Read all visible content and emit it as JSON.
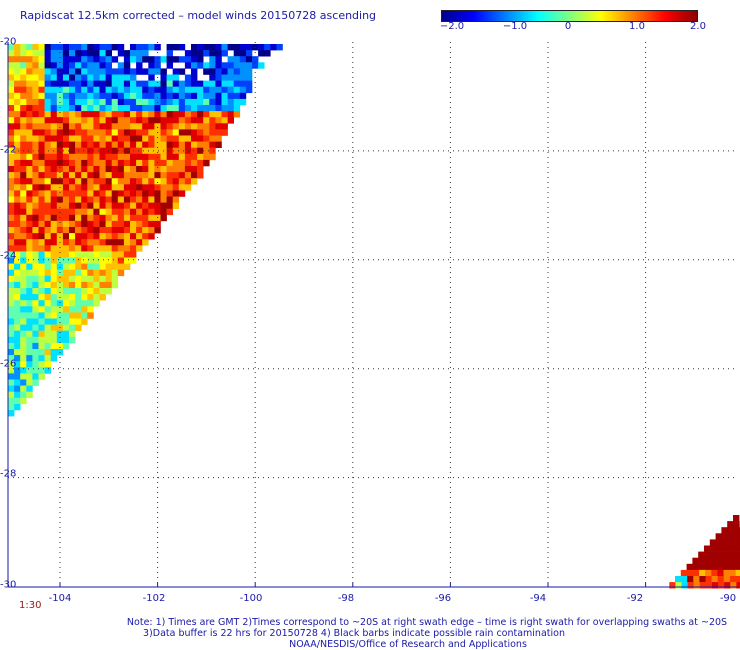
{
  "title": "Rapidscat 12.5km corrected – model winds 20150728 ascending",
  "colorbar": {
    "labels": [
      "−2.0",
      "−1.0",
      "0",
      "1.0",
      "2.0"
    ],
    "values": [
      -2.0,
      -1.0,
      0,
      1.0,
      2.0
    ],
    "stops": [
      "#00008b",
      "#0000ff",
      "#0080ff",
      "#00ffff",
      "#80ff80",
      "#ffff00",
      "#ff8000",
      "#ff0000",
      "#8b0000"
    ]
  },
  "map": {
    "lon_range": [
      -104.5,
      -90
    ],
    "lat_range": [
      -30,
      -20
    ],
    "y_ticks": [
      {
        "label": "-20",
        "lat": -20
      },
      {
        "label": "-22",
        "lat": -22
      },
      {
        "label": "-24",
        "lat": -24
      },
      {
        "label": "-26",
        "lat": -26
      },
      {
        "label": "-28",
        "lat": -28
      },
      {
        "label": "-30",
        "lat": -30
      }
    ],
    "x_ticks": [
      {
        "label": "-104",
        "lon": -104
      },
      {
        "label": "-102",
        "lon": -102
      },
      {
        "label": "-100",
        "lon": -100
      },
      {
        "label": "-98",
        "lon": -98
      },
      {
        "label": "-96",
        "lon": -96
      },
      {
        "label": "-94",
        "lon": -94
      },
      {
        "label": "-92",
        "lon": -92
      },
      {
        "label": "-90",
        "lon": -90
      }
    ],
    "grid": "dotted",
    "time_label": "1:30"
  },
  "notes": [
    "Note: 1) Times are GMT 2)Times correspond to ~20S at right swath edge – time is right swath for overlapping swaths at ~20S",
    "3)Data buffer is 22 hrs for 20150728 4) Black barbs indicate possible rain contamination",
    "NOAA/NESDIS/Office of Research and Applications"
  ]
}
